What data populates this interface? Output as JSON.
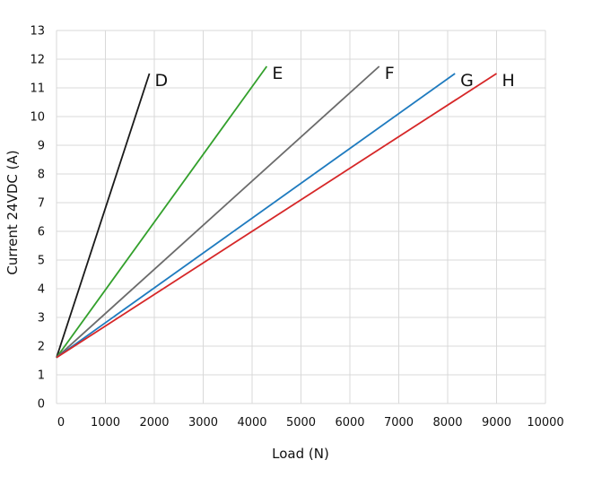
{
  "chart_data": {
    "type": "line",
    "title": "",
    "xlabel": "Load (N)",
    "ylabel": "Current 24VDC (A)",
    "xlim": [
      0,
      10000
    ],
    "ylim": [
      0,
      13
    ],
    "xticks": [
      0,
      1000,
      2000,
      3000,
      4000,
      5000,
      6000,
      7000,
      8000,
      9000,
      10000
    ],
    "yticks": [
      0,
      1,
      2,
      3,
      4,
      5,
      6,
      7,
      8,
      9,
      10,
      11,
      12,
      13
    ],
    "grid": true,
    "legend": "labels at line ends",
    "series": [
      {
        "name": "D",
        "color": "#1a1a1a",
        "points": [
          [
            0,
            1.6
          ],
          [
            1900,
            11.5
          ]
        ]
      },
      {
        "name": "E",
        "color": "#33a02c",
        "points": [
          [
            0,
            1.6
          ],
          [
            4300,
            11.75
          ]
        ]
      },
      {
        "name": "F",
        "color": "#6b6b6b",
        "points": [
          [
            0,
            1.6
          ],
          [
            6600,
            11.75
          ]
        ]
      },
      {
        "name": "G",
        "color": "#1f7bbf",
        "points": [
          [
            0,
            1.6
          ],
          [
            8150,
            11.5
          ]
        ]
      },
      {
        "name": "H",
        "color": "#d62728",
        "points": [
          [
            0,
            1.6
          ],
          [
            9000,
            11.5
          ]
        ]
      }
    ]
  }
}
